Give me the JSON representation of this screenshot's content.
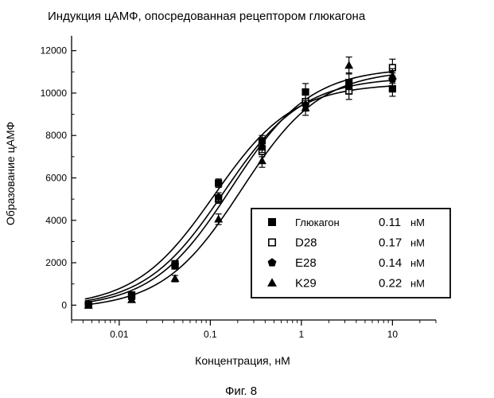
{
  "chart_data": {
    "type": "scatter",
    "title": "Индукция цАМФ, опосредованная рецептором глюкагона",
    "xlabel": "Концентрация, нМ",
    "ylabel": "Образование цАМФ",
    "x_scale": "log",
    "xlim": [
      0.003,
      30
    ],
    "ylim": [
      -700,
      12700
    ],
    "x_ticks": [
      0.01,
      0.1,
      1,
      10
    ],
    "x_tick_labels": [
      "0.01",
      "0.1",
      "1",
      "10"
    ],
    "y_ticks": [
      0,
      2000,
      4000,
      6000,
      8000,
      10000,
      12000
    ],
    "y_tick_labels": [
      "0",
      "2000",
      "4000",
      "6000",
      "8000",
      "10000",
      "12000"
    ],
    "grid": false,
    "legend_position": "bottom-right",
    "legend_unit": "нМ",
    "x": [
      0.0046,
      0.0137,
      0.041,
      0.123,
      0.37,
      1.11,
      3.33,
      10
    ],
    "series": [
      {
        "name": "Глюкагон",
        "marker": "filled-square",
        "ec50": "0.11",
        "y": [
          30,
          480,
          1950,
          5750,
          7750,
          10050,
          10500,
          10200
        ],
        "err": [
          60,
          100,
          150,
          200,
          250,
          400,
          450,
          350
        ]
      },
      {
        "name": "D28",
        "marker": "open-square",
        "ec50": "0.17",
        "y": [
          20,
          420,
          1850,
          5000,
          7250,
          9600,
          10100,
          11200
        ],
        "err": [
          60,
          100,
          150,
          200,
          250,
          350,
          400,
          400
        ]
      },
      {
        "name": "E28",
        "marker": "filled-pentagon",
        "ec50": "0.14",
        "y": [
          10,
          450,
          1900,
          5100,
          7450,
          9450,
          10300,
          10650
        ],
        "err": [
          60,
          100,
          150,
          200,
          250,
          300,
          350,
          300
        ]
      },
      {
        "name": "K29",
        "marker": "filled-triangle",
        "ec50": "0.22",
        "y": [
          -20,
          250,
          1250,
          4050,
          6800,
          9300,
          11300,
          10800
        ],
        "err": [
          60,
          100,
          150,
          250,
          300,
          350,
          400,
          350
        ]
      }
    ],
    "fits": [
      {
        "name": "Глюкагон",
        "bottom": -100,
        "top": 10450,
        "ec50": 0.11,
        "hill": 1.0
      },
      {
        "name": "D28",
        "bottom": -150,
        "top": 11200,
        "ec50": 0.17,
        "hill": 1.0
      },
      {
        "name": "E28",
        "bottom": -120,
        "top": 10750,
        "ec50": 0.14,
        "hill": 1.0
      },
      {
        "name": "K29",
        "bottom": -200,
        "top": 11100,
        "ec50": 0.22,
        "hill": 1.0
      }
    ]
  },
  "caption": "Фиг. 8"
}
